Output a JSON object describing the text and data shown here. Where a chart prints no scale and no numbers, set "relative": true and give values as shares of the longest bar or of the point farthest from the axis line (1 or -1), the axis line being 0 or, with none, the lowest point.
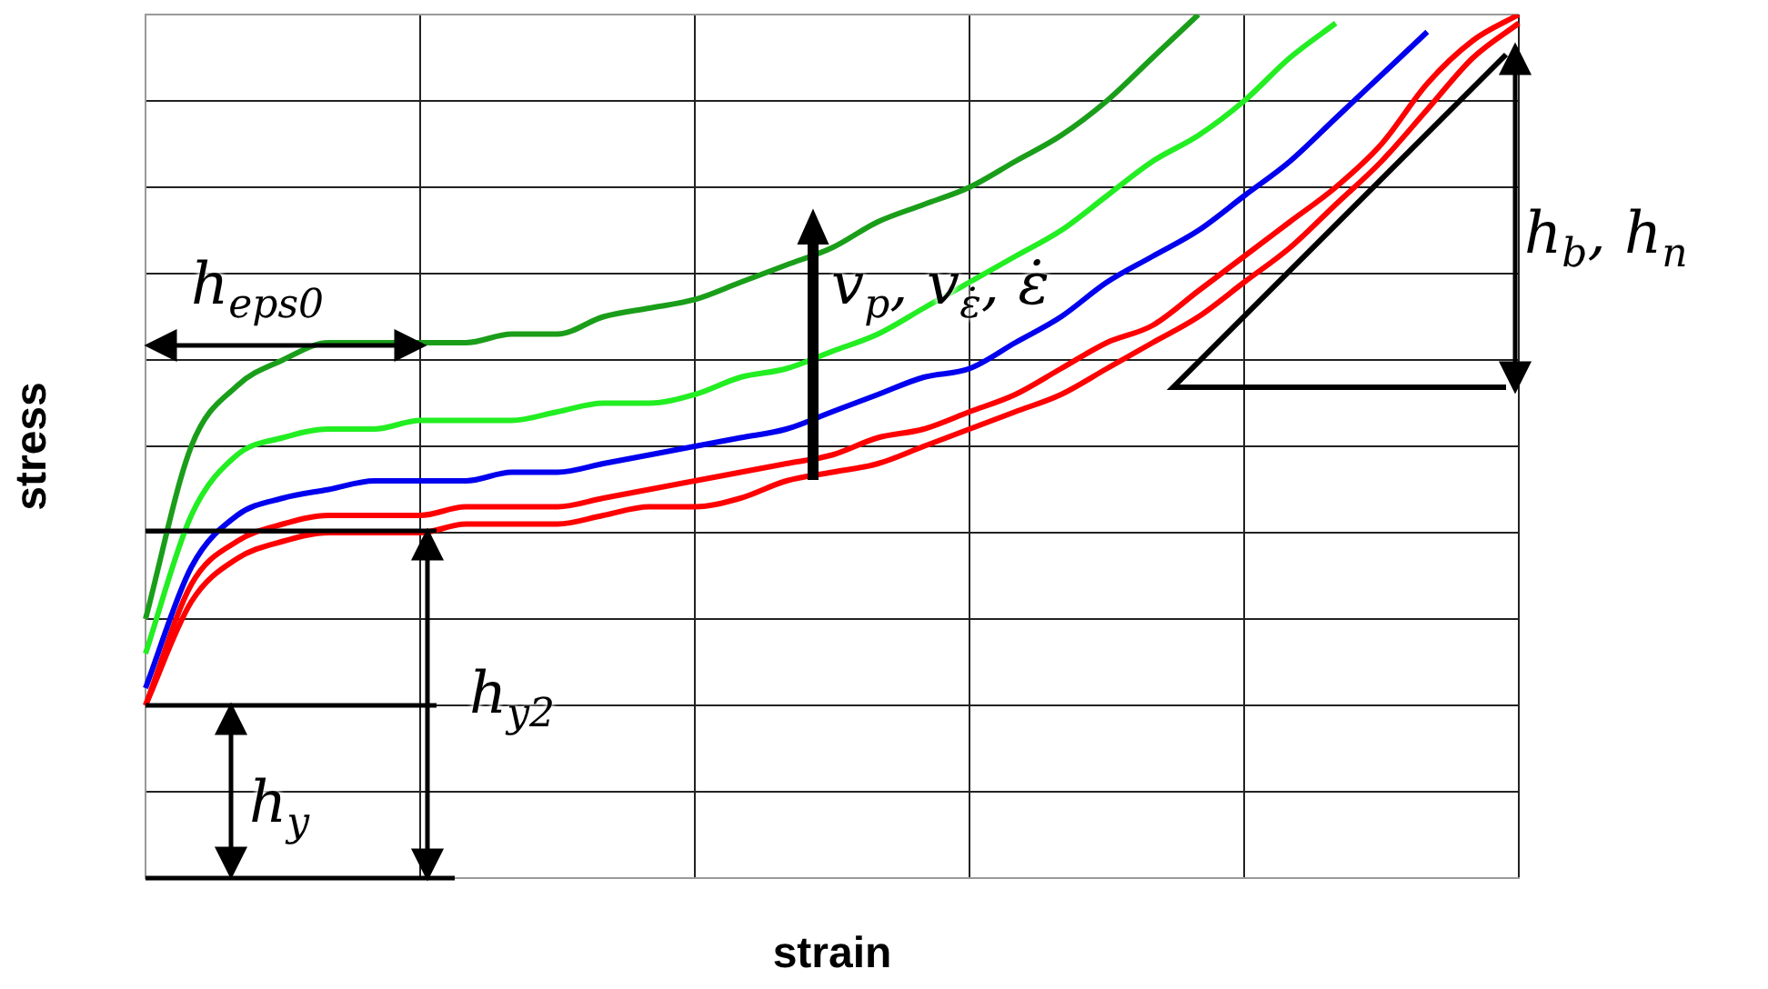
{
  "chart_data": {
    "type": "line",
    "xlabel": "strain",
    "ylabel": "stress",
    "relative": true,
    "grid": true,
    "legend": false,
    "marker": "none",
    "annotations": [
      "h$_{eps0}$",
      "h$_{y2}$",
      "h$_{y}$",
      "v$_{p}$, v$_{ε̇}$, ε̇",
      "h$_{b}$, h$_{n}$"
    ],
    "categories": [
      null,
      null,
      null,
      null,
      null,
      null,
      null,
      null,
      null,
      null,
      null,
      null,
      null,
      null,
      null,
      null,
      null,
      null,
      null,
      null,
      null,
      null,
      null,
      null,
      null,
      null,
      null,
      null,
      null,
      null,
      null
    ],
    "series": [
      {
        "color": "#1a9e1a",
        "values": [
          0.3,
          0.5,
          0.57,
          0.6,
          0.62,
          0.62,
          0.62,
          0.62,
          0.63,
          0.63,
          0.65,
          0.66,
          0.67,
          0.69,
          0.71,
          0.73,
          0.76,
          0.78,
          0.8,
          0.83,
          0.86,
          0.9,
          0.95,
          1.0,
          null,
          null,
          null,
          null,
          null,
          null,
          null
        ]
      },
      {
        "color": "#22ee22",
        "values": [
          0.26,
          0.42,
          0.49,
          0.51,
          0.52,
          0.52,
          0.53,
          0.53,
          0.53,
          0.54,
          0.55,
          0.55,
          0.56,
          0.58,
          0.59,
          0.61,
          0.63,
          0.66,
          0.69,
          0.72,
          0.75,
          0.79,
          0.83,
          0.86,
          0.9,
          0.95,
          0.99,
          null,
          null,
          null,
          null
        ]
      },
      {
        "color": "#0000ee",
        "values": [
          0.22,
          0.36,
          0.42,
          0.44,
          0.45,
          0.46,
          0.46,
          0.46,
          0.47,
          0.47,
          0.48,
          0.49,
          0.5,
          0.51,
          0.52,
          0.54,
          0.56,
          0.58,
          0.59,
          0.62,
          0.65,
          0.69,
          0.72,
          0.75,
          0.79,
          0.83,
          0.88,
          0.93,
          0.98,
          null,
          null
        ]
      },
      {
        "color": "#ff0000",
        "values": [
          0.2,
          0.34,
          0.39,
          0.41,
          0.42,
          0.42,
          0.42,
          0.43,
          0.43,
          0.43,
          0.44,
          0.45,
          0.46,
          0.47,
          0.48,
          0.49,
          0.51,
          0.52,
          0.54,
          0.56,
          0.59,
          0.62,
          0.64,
          0.68,
          0.72,
          0.76,
          0.8,
          0.85,
          0.92,
          0.97,
          1.0
        ]
      },
      {
        "color": "#ff0000",
        "values": [
          0.2,
          0.32,
          0.37,
          0.39,
          0.4,
          0.4,
          0.4,
          0.41,
          0.41,
          0.41,
          0.42,
          0.43,
          0.43,
          0.44,
          0.46,
          0.47,
          0.48,
          0.5,
          0.52,
          0.54,
          0.56,
          0.59,
          0.62,
          0.65,
          0.69,
          0.73,
          0.78,
          0.83,
          0.89,
          0.95,
          0.99
        ]
      }
    ]
  }
}
